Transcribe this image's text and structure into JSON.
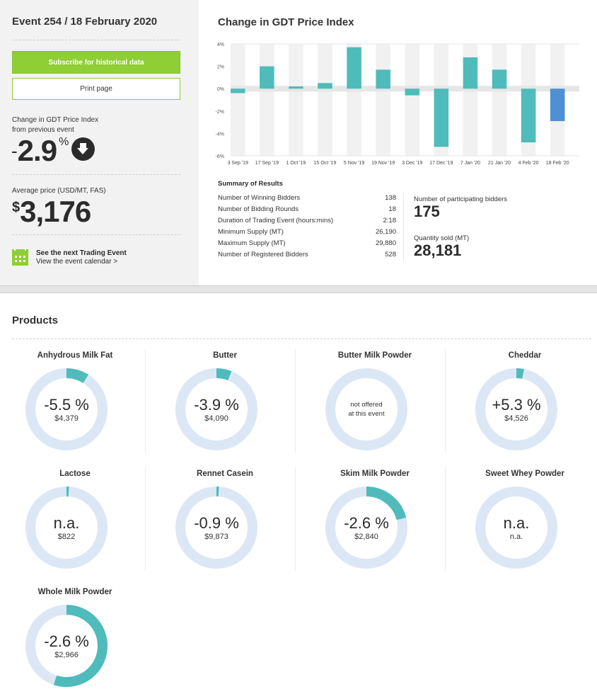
{
  "event": {
    "title": "Event 254 / 18 February 2020",
    "subscribe_label": "Subscribe for historical data",
    "print_label": "Print page",
    "change_label_line1": "Change in GDT Price Index",
    "change_label_line2": "from previous event",
    "change_sign": "-",
    "change_value": "2.9",
    "change_unit": "%",
    "change_direction_icon": "arrow-down-circle-icon",
    "avg_label": "Average price (USD/MT, FAS)",
    "avg_currency": "$",
    "avg_value": "3,176",
    "calendar_line1": "See the next Trading Event",
    "calendar_line2": "View the event calendar >"
  },
  "chart_title": "Change in GDT Price Index",
  "chart_data": {
    "type": "bar",
    "title": "Change in GDT Price Index",
    "xlabel": "",
    "ylabel": "",
    "ylim": [
      -6,
      4
    ],
    "yticks": [
      4,
      2,
      0,
      -2,
      -4,
      -6
    ],
    "ytick_labels": [
      "4%",
      "2%",
      "0%",
      "-2%",
      "-4%",
      "-6%"
    ],
    "categories": [
      "3 Sep '19",
      "17 Sep '19",
      "1 Oct '19",
      "15 Oct '19",
      "5 Nov '19",
      "19 Nov '19",
      "3 Dec '19",
      "17 Dec '19",
      "7 Jan '20",
      "21 Jan '20",
      "4 Feb '20",
      "18 Feb '20"
    ],
    "values": [
      -0.4,
      2.0,
      0.2,
      0.5,
      3.7,
      1.7,
      -0.6,
      -5.2,
      2.8,
      1.7,
      -4.8,
      -2.9
    ],
    "colors": {
      "default": "#4fbbbb",
      "current": "#4f8fd4"
    },
    "highlight_index": 11,
    "grid": false,
    "legend": "none"
  },
  "summary": {
    "title": "Summary of Results",
    "rows": [
      {
        "label": "Number of Winning Bidders",
        "value": "138"
      },
      {
        "label": "Number of Bidding Rounds",
        "value": "18"
      },
      {
        "label": "Duration of Trading Event (hours:mins)",
        "value": "2:18"
      },
      {
        "label": "Minimum Supply (MT)",
        "value": "26,190"
      },
      {
        "label": "Maximum Supply (MT)",
        "value": "29,880"
      },
      {
        "label": "Number of Registered Bidders",
        "value": "528"
      }
    ],
    "participating_label": "Number of participating bidders",
    "participating_value": "175",
    "quantity_label": "Quantity sold (MT)",
    "quantity_value": "28,181"
  },
  "products_title": "Products",
  "products": [
    {
      "name": "Anhydrous Milk Fat",
      "change": "-5.5 %",
      "price": "$4,379",
      "fill": 0.09,
      "offered": true
    },
    {
      "name": "Butter",
      "change": "-3.9 %",
      "price": "$4,090",
      "fill": 0.06,
      "offered": true
    },
    {
      "name": "Butter Milk Powder",
      "change": "",
      "price": "",
      "fill": 0,
      "offered": false,
      "message_line1": "not offered",
      "message_line2": "at this event"
    },
    {
      "name": "Cheddar",
      "change": "+5.3 %",
      "price": "$4,526",
      "fill": 0.03,
      "offered": true
    },
    {
      "name": "Lactose",
      "change": "n.a.",
      "price": "$822",
      "fill": 0.01,
      "offered": true
    },
    {
      "name": "Rennet Casein",
      "change": "-0.9 %",
      "price": "$9,873",
      "fill": 0.01,
      "offered": true
    },
    {
      "name": "Skim Milk Powder",
      "change": "-2.6 %",
      "price": "$2,840",
      "fill": 0.21,
      "offered": true
    },
    {
      "name": "Sweet Whey Powder",
      "change": "n.a.",
      "price": "n.a.",
      "fill": 0,
      "offered": true
    },
    {
      "name": "Whole Milk Powder",
      "change": "-2.6 %",
      "price": "$2,966",
      "fill": 0.55,
      "offered": true
    }
  ],
  "colors": {
    "accent_green": "#8fce34",
    "teal": "#4fbbbb",
    "ring_bg": "#dce7f5",
    "current_bar": "#4f8fd4"
  }
}
